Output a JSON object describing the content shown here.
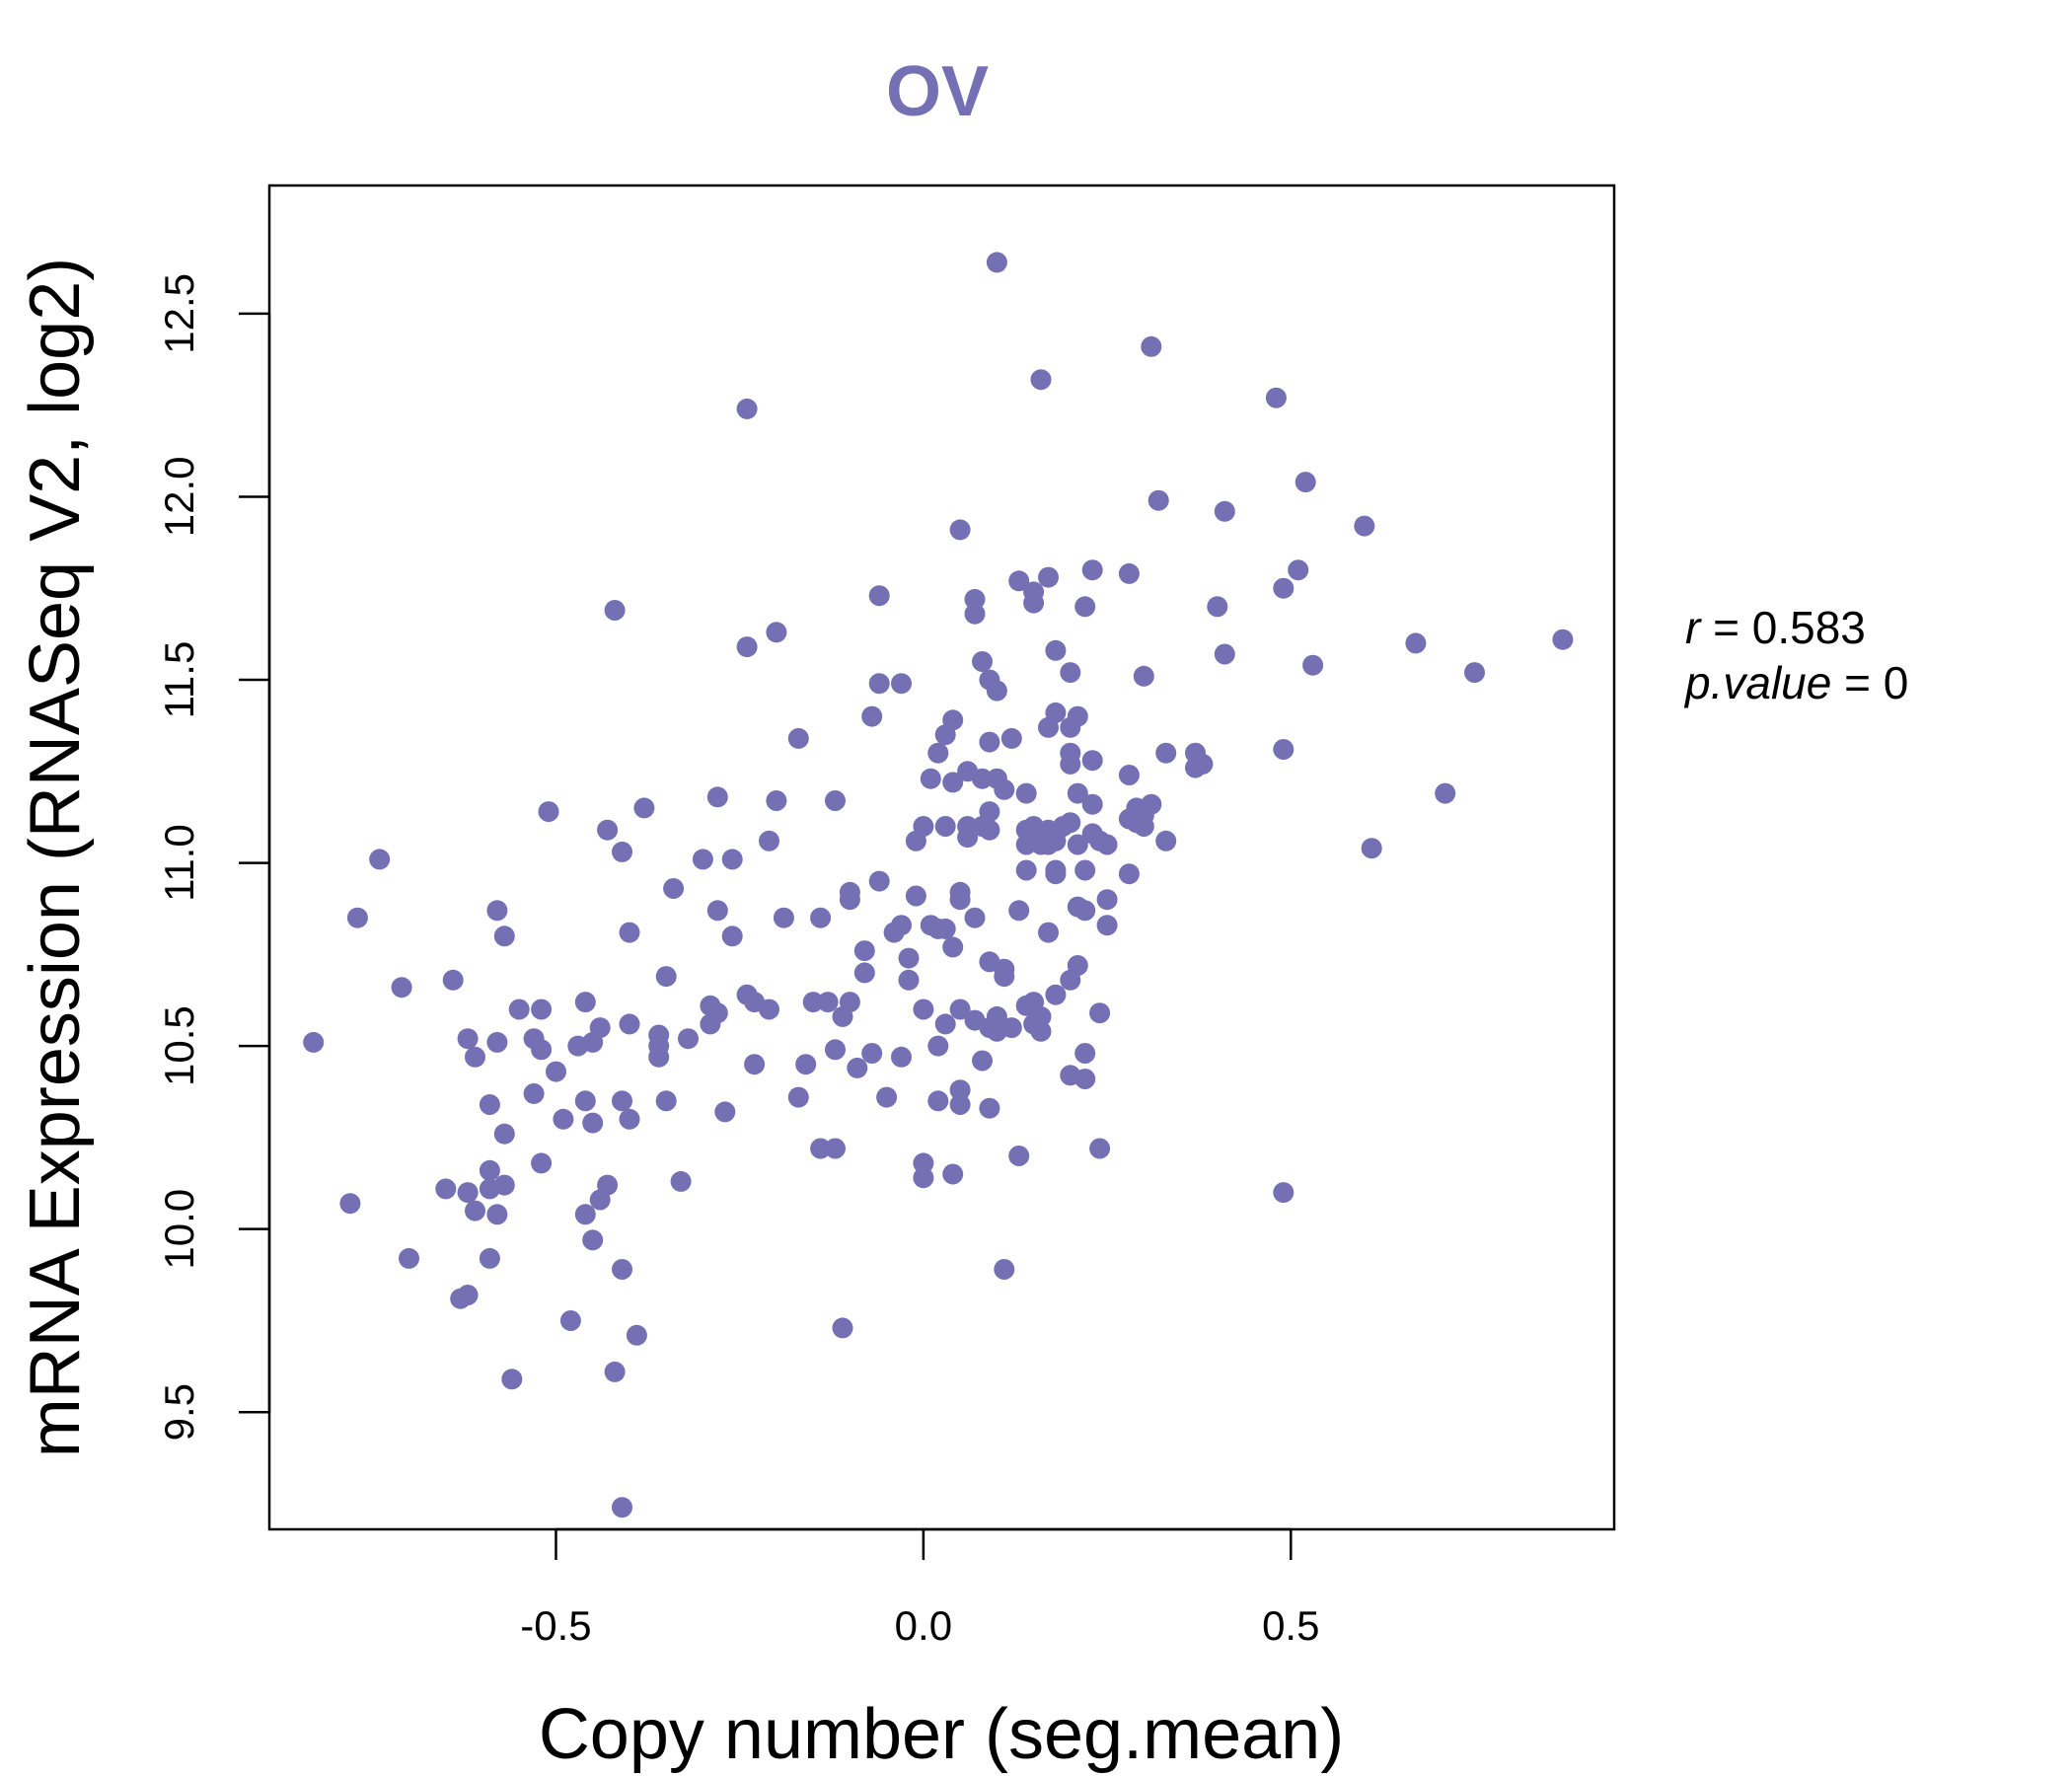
{
  "chart_data": {
    "type": "scatter",
    "title": "OV",
    "xlabel": "Copy number (seg.mean)",
    "ylabel": "mRNA Expression (RNASeq V2, log2)",
    "xlim": [
      -0.89,
      0.94
    ],
    "ylim": [
      9.18,
      12.85
    ],
    "xticks": [
      -0.5,
      0.0,
      0.5
    ],
    "xtick_labels": [
      "-0.5",
      "0.0",
      "0.5"
    ],
    "yticks": [
      9.5,
      10.0,
      10.5,
      11.0,
      11.5,
      12.0,
      12.5
    ],
    "ytick_labels": [
      "9.5",
      "10.0",
      "10.5",
      "11.0",
      "11.5",
      "12.0",
      "12.5"
    ],
    "grid": false,
    "point_color": "#7570b3",
    "stats": {
      "r_label": "r",
      "r_value": "0.583",
      "p_label": "p.value",
      "p_value": "0"
    },
    "points": [
      [
        -0.83,
        10.51
      ],
      [
        -0.78,
        10.07
      ],
      [
        -0.77,
        10.85
      ],
      [
        -0.74,
        11.01
      ],
      [
        -0.71,
        10.66
      ],
      [
        -0.7,
        9.92
      ],
      [
        -0.65,
        10.11
      ],
      [
        -0.64,
        10.68
      ],
      [
        -0.63,
        9.81
      ],
      [
        -0.62,
        10.52
      ],
      [
        -0.62,
        10.1
      ],
      [
        -0.62,
        9.82
      ],
      [
        -0.61,
        10.05
      ],
      [
        -0.61,
        10.47
      ],
      [
        -0.59,
        10.16
      ],
      [
        -0.59,
        10.11
      ],
      [
        -0.59,
        10.34
      ],
      [
        -0.59,
        9.92
      ],
      [
        -0.58,
        10.51
      ],
      [
        -0.58,
        10.87
      ],
      [
        -0.58,
        10.04
      ],
      [
        -0.57,
        10.8
      ],
      [
        -0.57,
        10.26
      ],
      [
        -0.57,
        10.12
      ],
      [
        -0.56,
        9.59
      ],
      [
        -0.55,
        10.6
      ],
      [
        -0.53,
        10.52
      ],
      [
        -0.53,
        10.37
      ],
      [
        -0.52,
        10.18
      ],
      [
        -0.52,
        10.49
      ],
      [
        -0.52,
        10.6
      ],
      [
        -0.51,
        11.14
      ],
      [
        -0.5,
        10.43
      ],
      [
        -0.49,
        10.3
      ],
      [
        -0.48,
        9.75
      ],
      [
        -0.47,
        10.5
      ],
      [
        -0.46,
        10.62
      ],
      [
        -0.46,
        10.35
      ],
      [
        -0.46,
        10.04
      ],
      [
        -0.45,
        10.51
      ],
      [
        -0.45,
        10.29
      ],
      [
        -0.45,
        9.97
      ],
      [
        -0.44,
        10.55
      ],
      [
        -0.44,
        10.08
      ],
      [
        -0.43,
        11.09
      ],
      [
        -0.43,
        10.12
      ],
      [
        -0.42,
        11.69
      ],
      [
        -0.42,
        9.61
      ],
      [
        -0.41,
        10.35
      ],
      [
        -0.41,
        11.03
      ],
      [
        -0.41,
        9.89
      ],
      [
        -0.41,
        9.24
      ],
      [
        -0.4,
        10.81
      ],
      [
        -0.4,
        10.56
      ],
      [
        -0.4,
        10.3
      ],
      [
        -0.39,
        9.71
      ],
      [
        -0.38,
        11.15
      ],
      [
        -0.36,
        10.53
      ],
      [
        -0.36,
        10.5
      ],
      [
        -0.36,
        10.47
      ],
      [
        -0.35,
        10.69
      ],
      [
        -0.35,
        10.35
      ],
      [
        -0.34,
        10.93
      ],
      [
        -0.33,
        10.13
      ],
      [
        -0.32,
        10.52
      ],
      [
        -0.3,
        11.01
      ],
      [
        -0.29,
        10.61
      ],
      [
        -0.29,
        10.56
      ],
      [
        -0.28,
        10.87
      ],
      [
        -0.28,
        11.18
      ],
      [
        -0.28,
        10.59
      ],
      [
        -0.27,
        10.32
      ],
      [
        -0.26,
        10.8
      ],
      [
        -0.26,
        11.01
      ],
      [
        -0.24,
        12.24
      ],
      [
        -0.24,
        11.59
      ],
      [
        -0.24,
        10.64
      ],
      [
        -0.23,
        10.45
      ],
      [
        -0.23,
        10.62
      ],
      [
        -0.21,
        10.6
      ],
      [
        -0.21,
        11.06
      ],
      [
        -0.2,
        11.63
      ],
      [
        -0.2,
        11.17
      ],
      [
        -0.19,
        10.85
      ],
      [
        -0.17,
        11.34
      ],
      [
        -0.17,
        10.36
      ],
      [
        -0.16,
        10.45
      ],
      [
        -0.15,
        10.62
      ],
      [
        -0.14,
        10.22
      ],
      [
        -0.14,
        10.85
      ],
      [
        -0.13,
        10.62
      ],
      [
        -0.12,
        11.17
      ],
      [
        -0.12,
        10.49
      ],
      [
        -0.12,
        10.22
      ],
      [
        -0.11,
        9.73
      ],
      [
        -0.11,
        10.58
      ],
      [
        -0.1,
        10.92
      ],
      [
        -0.1,
        10.9
      ],
      [
        -0.1,
        10.62
      ],
      [
        -0.09,
        10.44
      ],
      [
        -0.08,
        10.7
      ],
      [
        -0.08,
        10.76
      ],
      [
        -0.07,
        10.48
      ],
      [
        -0.07,
        11.4
      ],
      [
        -0.06,
        11.73
      ],
      [
        -0.06,
        11.49
      ],
      [
        -0.06,
        10.95
      ],
      [
        -0.05,
        10.36
      ],
      [
        -0.04,
        10.81
      ],
      [
        -0.03,
        11.49
      ],
      [
        -0.03,
        10.47
      ],
      [
        -0.03,
        10.83
      ],
      [
        -0.02,
        10.68
      ],
      [
        -0.02,
        10.74
      ],
      [
        -0.01,
        10.91
      ],
      [
        -0.01,
        11.06
      ],
      [
        0.0,
        11.1
      ],
      [
        0.0,
        10.18
      ],
      [
        0.0,
        10.14
      ],
      [
        0.0,
        10.6
      ],
      [
        0.01,
        10.83
      ],
      [
        0.01,
        11.23
      ],
      [
        0.02,
        10.5
      ],
      [
        0.02,
        10.35
      ],
      [
        0.02,
        10.82
      ],
      [
        0.02,
        11.3
      ],
      [
        0.03,
        11.1
      ],
      [
        0.03,
        11.35
      ],
      [
        0.03,
        10.82
      ],
      [
        0.03,
        10.56
      ],
      [
        0.04,
        11.22
      ],
      [
        0.04,
        11.39
      ],
      [
        0.04,
        10.77
      ],
      [
        0.04,
        10.15
      ],
      [
        0.05,
        10.9
      ],
      [
        0.05,
        10.6
      ],
      [
        0.05,
        10.92
      ],
      [
        0.05,
        10.34
      ],
      [
        0.05,
        10.38
      ],
      [
        0.05,
        11.91
      ],
      [
        0.06,
        11.1
      ],
      [
        0.06,
        11.25
      ],
      [
        0.06,
        11.07
      ],
      [
        0.07,
        11.72
      ],
      [
        0.07,
        11.68
      ],
      [
        0.07,
        10.85
      ],
      [
        0.07,
        10.57
      ],
      [
        0.08,
        11.55
      ],
      [
        0.08,
        11.23
      ],
      [
        0.08,
        11.1
      ],
      [
        0.08,
        10.46
      ],
      [
        0.09,
        11.5
      ],
      [
        0.09,
        11.33
      ],
      [
        0.09,
        11.14
      ],
      [
        0.09,
        11.09
      ],
      [
        0.09,
        10.73
      ],
      [
        0.09,
        10.55
      ],
      [
        0.09,
        10.33
      ],
      [
        0.1,
        11.47
      ],
      [
        0.1,
        11.23
      ],
      [
        0.1,
        12.64
      ],
      [
        0.1,
        10.58
      ],
      [
        0.1,
        10.54
      ],
      [
        0.11,
        11.2
      ],
      [
        0.11,
        10.71
      ],
      [
        0.11,
        10.69
      ],
      [
        0.11,
        9.89
      ],
      [
        0.12,
        11.34
      ],
      [
        0.12,
        10.55
      ],
      [
        0.13,
        10.2
      ],
      [
        0.13,
        10.87
      ],
      [
        0.13,
        11.77
      ],
      [
        0.14,
        11.09
      ],
      [
        0.14,
        11.05
      ],
      [
        0.14,
        11.19
      ],
      [
        0.14,
        10.98
      ],
      [
        0.14,
        10.61
      ],
      [
        0.15,
        11.71
      ],
      [
        0.15,
        11.74
      ],
      [
        0.15,
        10.62
      ],
      [
        0.15,
        10.56
      ],
      [
        0.15,
        11.1
      ],
      [
        0.16,
        10.54
      ],
      [
        0.16,
        10.58
      ],
      [
        0.16,
        11.08
      ],
      [
        0.16,
        11.05
      ],
      [
        0.16,
        12.32
      ],
      [
        0.17,
        11.37
      ],
      [
        0.17,
        11.78
      ],
      [
        0.17,
        11.05
      ],
      [
        0.17,
        11.09
      ],
      [
        0.17,
        10.81
      ],
      [
        0.18,
        11.41
      ],
      [
        0.18,
        10.98
      ],
      [
        0.18,
        10.97
      ],
      [
        0.18,
        10.64
      ],
      [
        0.18,
        11.58
      ],
      [
        0.18,
        11.06
      ],
      [
        0.19,
        11.1
      ],
      [
        0.2,
        11.27
      ],
      [
        0.2,
        10.42
      ],
      [
        0.2,
        11.37
      ],
      [
        0.2,
        11.3
      ],
      [
        0.2,
        11.52
      ],
      [
        0.2,
        10.68
      ],
      [
        0.2,
        11.11
      ],
      [
        0.21,
        11.05
      ],
      [
        0.21,
        10.72
      ],
      [
        0.21,
        10.88
      ],
      [
        0.21,
        11.4
      ],
      [
        0.21,
        11.19
      ],
      [
        0.22,
        11.7
      ],
      [
        0.22,
        10.98
      ],
      [
        0.22,
        10.48
      ],
      [
        0.22,
        10.41
      ],
      [
        0.22,
        10.87
      ],
      [
        0.23,
        11.16
      ],
      [
        0.23,
        11.8
      ],
      [
        0.23,
        11.28
      ],
      [
        0.23,
        11.08
      ],
      [
        0.24,
        11.06
      ],
      [
        0.24,
        10.59
      ],
      [
        0.24,
        10.22
      ],
      [
        0.25,
        10.9
      ],
      [
        0.25,
        10.83
      ],
      [
        0.25,
        11.05
      ],
      [
        0.28,
        11.79
      ],
      [
        0.28,
        11.24
      ],
      [
        0.28,
        11.12
      ],
      [
        0.28,
        10.97
      ],
      [
        0.29,
        11.11
      ],
      [
        0.29,
        11.15
      ],
      [
        0.3,
        11.13
      ],
      [
        0.3,
        11.1
      ],
      [
        0.3,
        11.51
      ],
      [
        0.31,
        12.41
      ],
      [
        0.31,
        11.16
      ],
      [
        0.32,
        11.99
      ],
      [
        0.33,
        11.3
      ],
      [
        0.33,
        11.06
      ],
      [
        0.37,
        11.3
      ],
      [
        0.37,
        11.26
      ],
      [
        0.38,
        11.27
      ],
      [
        0.4,
        11.7
      ],
      [
        0.41,
        11.57
      ],
      [
        0.41,
        11.96
      ],
      [
        0.48,
        12.27
      ],
      [
        0.49,
        11.75
      ],
      [
        0.49,
        10.1
      ],
      [
        0.49,
        11.31
      ],
      [
        0.51,
        11.8
      ],
      [
        0.52,
        12.04
      ],
      [
        0.53,
        11.54
      ],
      [
        0.6,
        11.92
      ],
      [
        0.61,
        11.04
      ],
      [
        0.67,
        11.6
      ],
      [
        0.71,
        11.19
      ],
      [
        0.75,
        11.52
      ],
      [
        0.87,
        11.61
      ]
    ]
  }
}
